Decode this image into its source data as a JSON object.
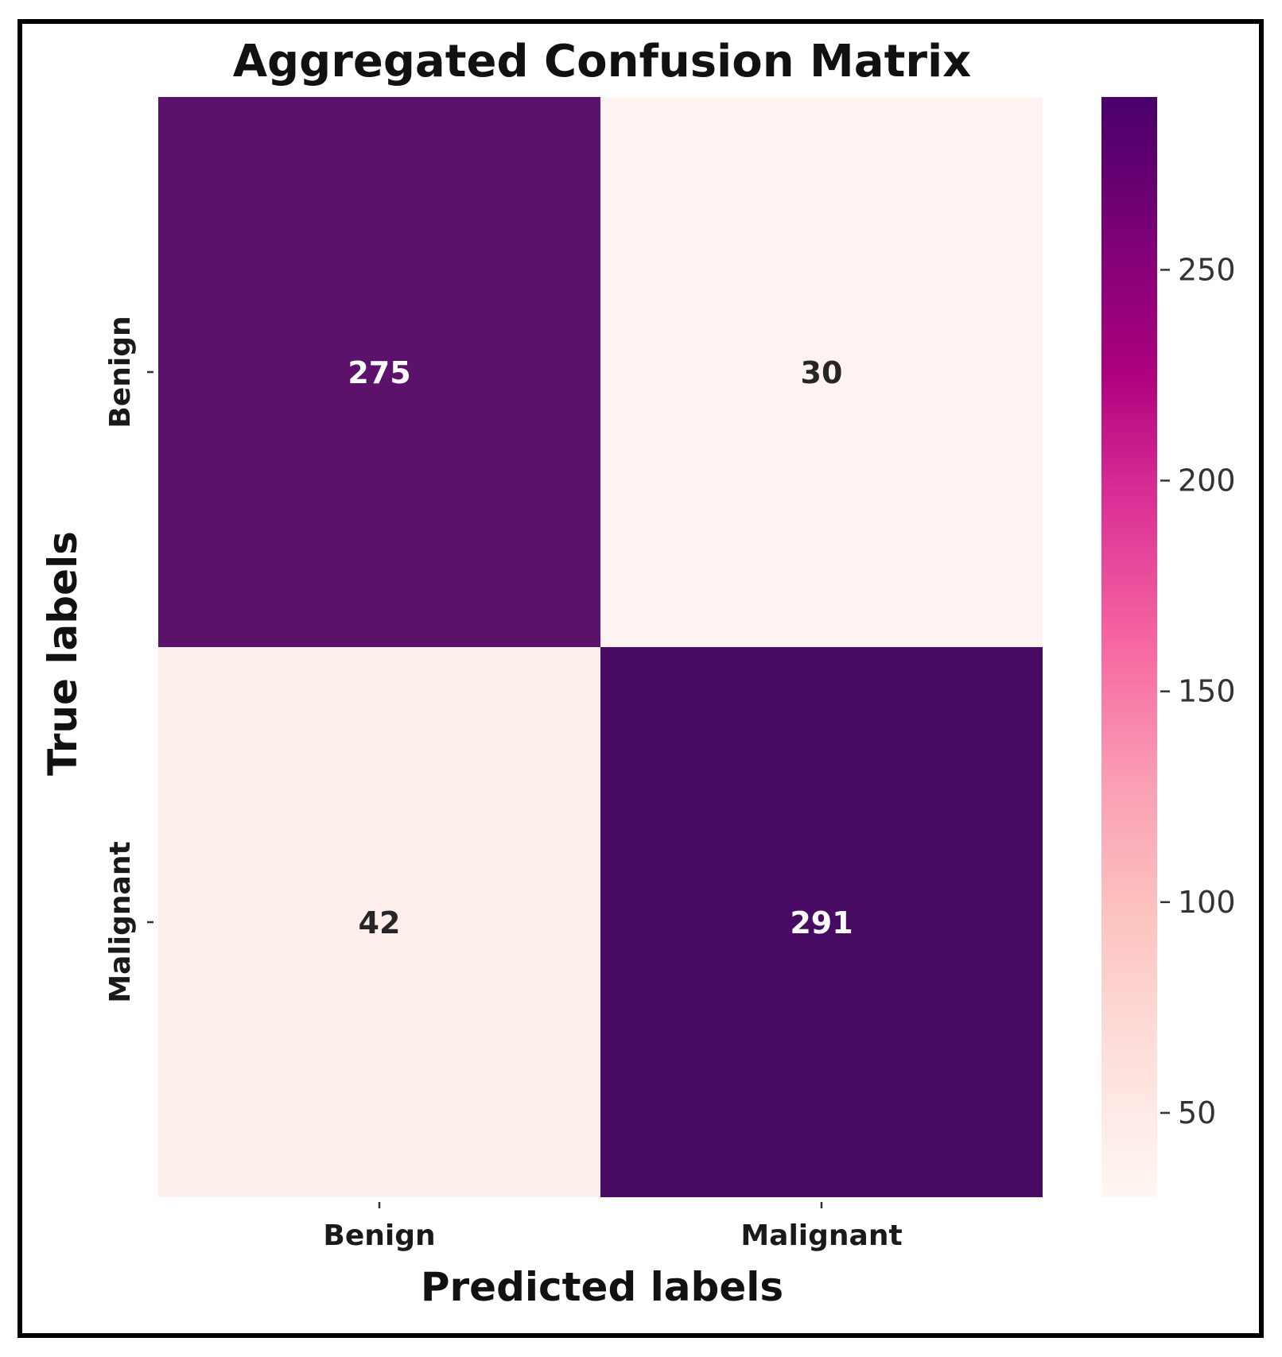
{
  "chart_data": {
    "type": "heatmap",
    "title": "Aggregated Confusion Matrix",
    "xlabel": "Predicted labels",
    "ylabel": "True labels",
    "x_categories": [
      "Benign",
      "Malignant"
    ],
    "y_categories": [
      "Benign",
      "Malignant"
    ],
    "values": [
      [
        275,
        30
      ],
      [
        42,
        291
      ]
    ],
    "colorbar": {
      "range": [
        30,
        291
      ],
      "ticks": [
        50,
        100,
        150,
        200,
        250
      ],
      "colormap": "RdPu",
      "stops": [
        "#fff7f3",
        "#fde0dd",
        "#fcc5c0",
        "#fa9fb5",
        "#f768a1",
        "#dd3497",
        "#ae017e",
        "#7a0177",
        "#49006a"
      ]
    },
    "cell_colors": [
      [
        "#5c116a",
        "#fff4f1"
      ],
      [
        "#fcefeb",
        "#470b64"
      ]
    ],
    "annotation_colors": {
      "dark_cell": "#ffffff",
      "light_cell": "#262626"
    }
  }
}
